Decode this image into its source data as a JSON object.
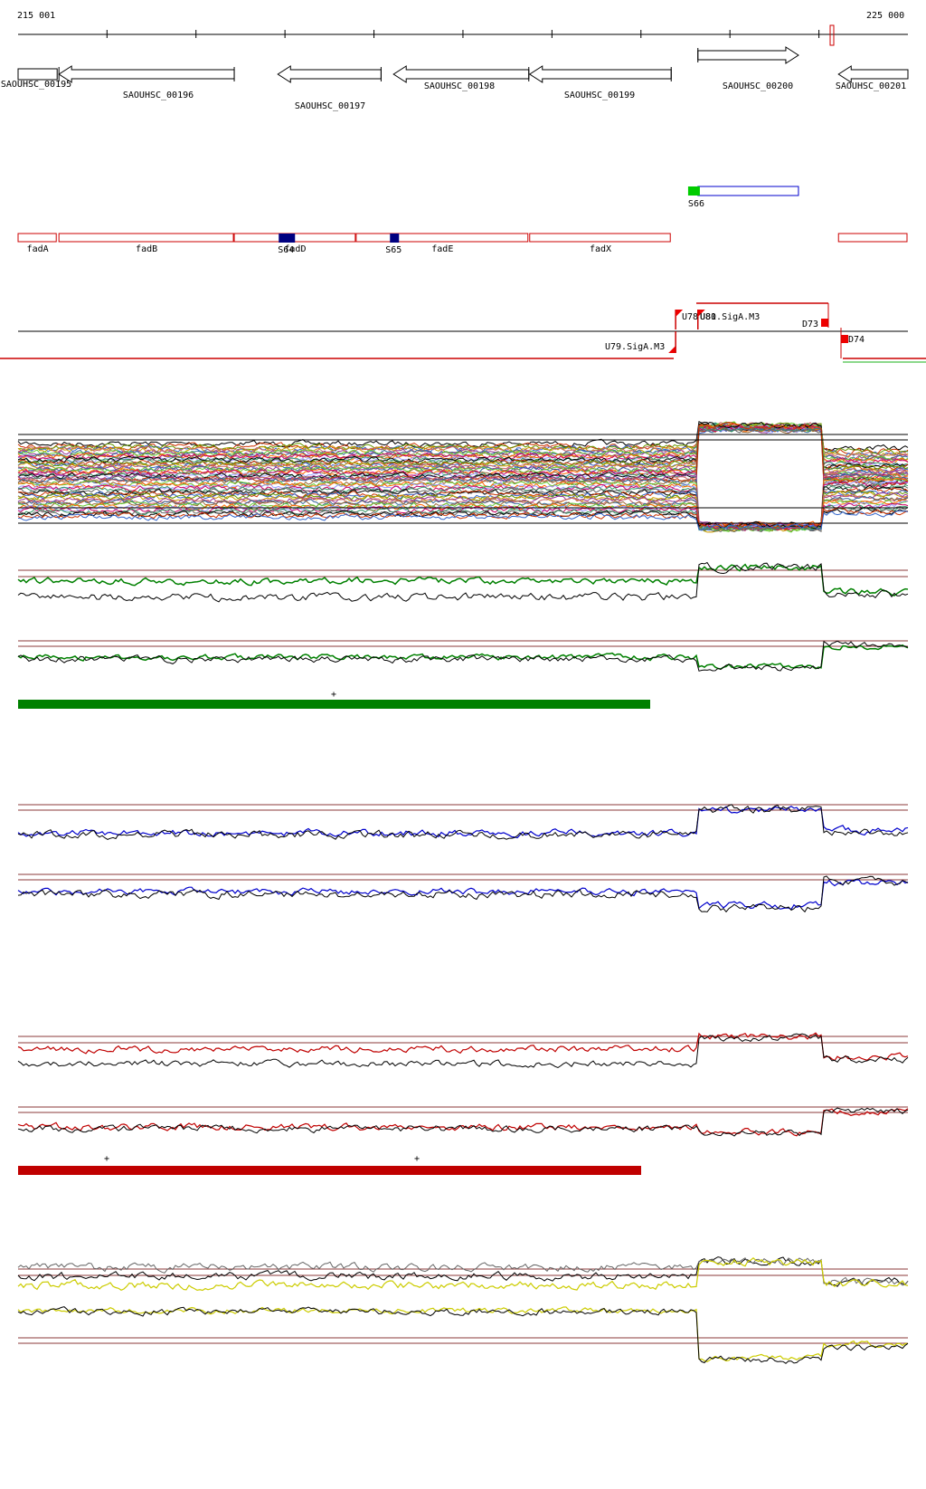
{
  "ruler": {
    "start_label": "215 001",
    "end_label": "225 000",
    "start": 215001,
    "end": 225000
  },
  "genes": [
    {
      "id": "SAOUHSC_00195",
      "strand": "+",
      "start": 215001,
      "end": 215440
    },
    {
      "id": "SAOUHSC_00196",
      "strand": "-",
      "start": 215460,
      "end": 217430
    },
    {
      "id": "SAOUHSC_00197",
      "strand": "-",
      "start": 217920,
      "end": 219080
    },
    {
      "id": "SAOUHSC_00198",
      "strand": "-",
      "start": 219220,
      "end": 220740
    },
    {
      "id": "SAOUHSC_00199",
      "strand": "-",
      "start": 220750,
      "end": 222340
    },
    {
      "id": "SAOUHSC_00200",
      "strand": "+",
      "start": 222640,
      "end": 223770
    },
    {
      "id": "SAOUHSC_00201",
      "strand": "-",
      "start": 224220,
      "end": 225000
    }
  ],
  "operons": [
    {
      "label": "fadA",
      "start": 215001,
      "end": 215440
    },
    {
      "label": "fadB",
      "start": 215460,
      "end": 217430
    },
    {
      "label": "fadD",
      "start": 217430,
      "end": 218800
    },
    {
      "label": "fadE",
      "start": 218800,
      "end": 220740
    },
    {
      "label": "fadX",
      "start": 220750,
      "end": 222340
    },
    {
      "label": "",
      "start": 224220,
      "end": 225000
    }
  ],
  "segments": [
    {
      "label": "S64",
      "pos": 217930,
      "color": "#000080"
    },
    {
      "label": "S65",
      "pos": 219180,
      "color": "#000080"
    },
    {
      "label": "S66",
      "pos": 222530,
      "color": "#00cc00"
    }
  ],
  "s66_box": {
    "start": 222640,
    "end": 223770,
    "color": "#0000cc"
  },
  "promoters": [
    {
      "label": "U78",
      "pos": 222390
    },
    {
      "label": "U80",
      "pos": 222570
    },
    {
      "label": "U81.SigA.M3",
      "pos": 222640
    },
    {
      "label": "U79.SigA.M3",
      "pos": 222390
    },
    {
      "label": "D73",
      "pos": 223900
    },
    {
      "label": "D74",
      "pos": 224050
    }
  ],
  "markers": [
    {
      "symbol": "+",
      "track": "green"
    },
    {
      "symbol": "+",
      "track": "red"
    },
    {
      "symbol": "+",
      "track": "red"
    }
  ],
  "colors": {
    "green": "#008000",
    "blue": "#0000cc",
    "red": "#c00000",
    "yellow": "#cccc00",
    "brown": "#8b3a3a"
  }
}
